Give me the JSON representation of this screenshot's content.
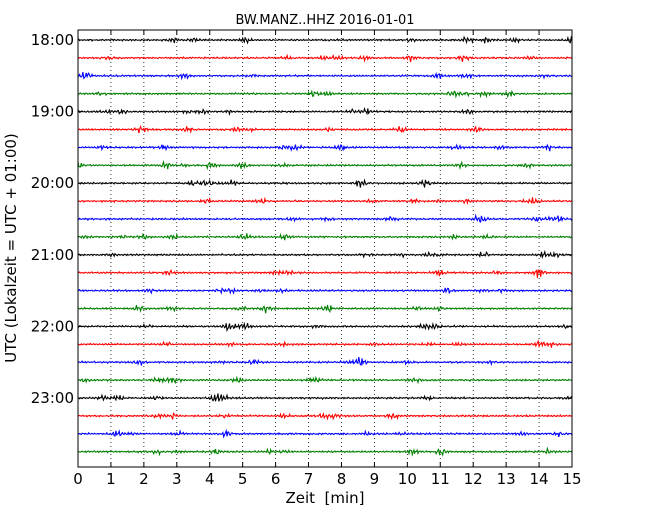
{
  "chart_data": {
    "type": "line",
    "title": "BW.MANZ..HHZ 2016-01-01",
    "xlabel": "Zeit  [min]",
    "ylabel": "UTC (Lokalzeit = UTC + 01:00)",
    "xlim": [
      0,
      15
    ],
    "x_ticks": [
      "0",
      "1",
      "2",
      "3",
      "4",
      "5",
      "6",
      "7",
      "8",
      "9",
      "10",
      "11",
      "12",
      "13",
      "14",
      "15"
    ],
    "y_tick_labels": [
      "18:00",
      "19:00",
      "20:00",
      "21:00",
      "22:00",
      "23:00"
    ],
    "traces_per_hour": 4,
    "trace_count": 24,
    "trace_colors": [
      "#000000",
      "#ff0000",
      "#0000ff",
      "#008000"
    ],
    "grid": "x-dotted",
    "legend": "none"
  }
}
